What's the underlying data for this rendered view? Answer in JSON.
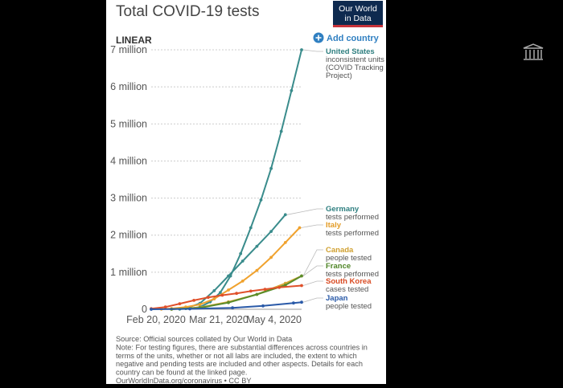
{
  "chart_data": {
    "type": "line",
    "title": "Total COVID-19 tests",
    "scale_label": "LINEAR",
    "add_country": "Add country",
    "logo": [
      "Our World",
      "in Data"
    ],
    "x_ticks": [
      "Feb 20, 2020",
      "Mar 21, 2020",
      "May 4, 2020"
    ],
    "y_ticks": [
      {
        "value": 0,
        "label": "0"
      },
      {
        "value": 1000000,
        "label": "1 million"
      },
      {
        "value": 2000000,
        "label": "2 million"
      },
      {
        "value": 3000000,
        "label": "3 million"
      },
      {
        "value": 4000000,
        "label": "4 million"
      },
      {
        "value": 5000000,
        "label": "5 million"
      },
      {
        "value": 6000000,
        "label": "6 million"
      },
      {
        "value": 7000000,
        "label": "7 million"
      }
    ],
    "ylim": [
      0,
      7000000
    ],
    "xlim": [
      "2020-02-20",
      "2020-05-04"
    ],
    "grid": "horizontal dotted",
    "series": [
      {
        "name": "United States",
        "note": [
          "inconsistent units",
          "(COVID Tracking",
          "Project)"
        ],
        "color": "#3a8c8c",
        "points": [
          [
            "2020-03-05",
            5000
          ],
          [
            "2020-03-10",
            20000
          ],
          [
            "2020-03-15",
            60000
          ],
          [
            "2020-03-20",
            200000
          ],
          [
            "2020-03-25",
            450000
          ],
          [
            "2020-03-30",
            900000
          ],
          [
            "2020-04-04",
            1500000
          ],
          [
            "2020-04-09",
            2200000
          ],
          [
            "2020-04-14",
            2950000
          ],
          [
            "2020-04-19",
            3800000
          ],
          [
            "2020-04-24",
            4800000
          ],
          [
            "2020-04-29",
            5900000
          ],
          [
            "2020-05-04",
            7000000
          ]
        ]
      },
      {
        "name": "Germany",
        "note": [
          "tests performed"
        ],
        "color": "#3a8c8c",
        "points": [
          [
            "2020-03-08",
            20000
          ],
          [
            "2020-03-15",
            160000
          ],
          [
            "2020-03-22",
            500000
          ],
          [
            "2020-03-29",
            900000
          ],
          [
            "2020-04-05",
            1300000
          ],
          [
            "2020-04-12",
            1700000
          ],
          [
            "2020-04-19",
            2100000
          ],
          [
            "2020-04-26",
            2550000
          ]
        ]
      },
      {
        "name": "Italy",
        "note": [
          "tests performed"
        ],
        "color": "#f0a22e",
        "points": [
          [
            "2020-02-25",
            5000
          ],
          [
            "2020-03-01",
            20000
          ],
          [
            "2020-03-08",
            60000
          ],
          [
            "2020-03-15",
            130000
          ],
          [
            "2020-03-22",
            280000
          ],
          [
            "2020-03-29",
            520000
          ],
          [
            "2020-04-05",
            760000
          ],
          [
            "2020-04-12",
            1050000
          ],
          [
            "2020-04-19",
            1400000
          ],
          [
            "2020-04-26",
            1800000
          ],
          [
            "2020-05-03",
            2200000
          ]
        ]
      },
      {
        "name": "Canada",
        "note": [
          "people tested"
        ],
        "color": "#d4a634",
        "points": [
          [
            "2020-03-01",
            2000
          ],
          [
            "2020-03-15",
            50000
          ],
          [
            "2020-03-29",
            200000
          ],
          [
            "2020-04-12",
            400000
          ],
          [
            "2020-04-26",
            700000
          ],
          [
            "2020-05-04",
            900000
          ]
        ]
      },
      {
        "name": "France",
        "note": [
          "tests performed"
        ],
        "color": "#5a8c2a",
        "points": [
          [
            "2020-03-01",
            2000
          ],
          [
            "2020-03-15",
            40000
          ],
          [
            "2020-03-29",
            180000
          ],
          [
            "2020-04-12",
            400000
          ],
          [
            "2020-04-26",
            650000
          ],
          [
            "2020-05-04",
            900000
          ]
        ]
      },
      {
        "name": "South Korea",
        "note": [
          "cases tested"
        ],
        "color": "#e0502a",
        "points": [
          [
            "2020-02-20",
            15000
          ],
          [
            "2020-02-27",
            60000
          ],
          [
            "2020-03-05",
            150000
          ],
          [
            "2020-03-12",
            240000
          ],
          [
            "2020-03-19",
            320000
          ],
          [
            "2020-03-26",
            380000
          ],
          [
            "2020-04-02",
            430000
          ],
          [
            "2020-04-09",
            490000
          ],
          [
            "2020-04-16",
            540000
          ],
          [
            "2020-04-23",
            590000
          ],
          [
            "2020-05-04",
            640000
          ]
        ]
      },
      {
        "name": "Japan",
        "note": [
          "people tested"
        ],
        "color": "#2a5aa8",
        "points": [
          [
            "2020-02-20",
            1000
          ],
          [
            "2020-03-10",
            10000
          ],
          [
            "2020-03-31",
            40000
          ],
          [
            "2020-04-15",
            90000
          ],
          [
            "2020-04-30",
            170000
          ],
          [
            "2020-05-04",
            190000
          ]
        ]
      }
    ],
    "sources": [
      "Source: Official sources collated by Our World in Data",
      "Note: For testing figures, there are substantial differences across countries in",
      "terms of the units, whether or not all labs are included, the extent to which",
      "negative and pending tests are included and other aspects. Details for each",
      "country can be found at the linked page.",
      "OurWorldInData.org/coronavirus • CC BY"
    ]
  }
}
